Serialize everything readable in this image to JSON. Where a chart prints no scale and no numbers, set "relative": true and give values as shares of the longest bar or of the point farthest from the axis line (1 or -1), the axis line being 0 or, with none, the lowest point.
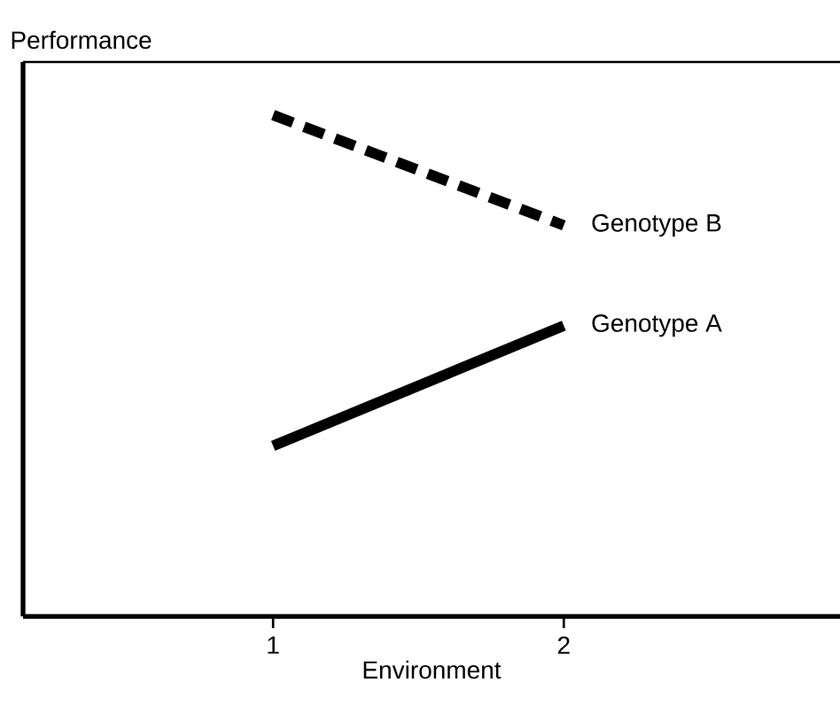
{
  "chart_data": {
    "type": "line",
    "ylabel": "Performance",
    "xlabel": "Environment",
    "x": [
      1,
      2
    ],
    "xlim": [
      0.14,
      2.95
    ],
    "xticks": [
      1,
      2
    ],
    "relative": true,
    "tick_labels": "x",
    "series": [
      {
        "name": "Genotype B",
        "color": "#000000",
        "line_style": "dashed",
        "values": [
          1,
          0.78
        ]
      },
      {
        "name": "Genotype A",
        "color": "#000000",
        "line_style": "solid",
        "values": [
          0.34,
          0.58
        ]
      }
    ]
  }
}
